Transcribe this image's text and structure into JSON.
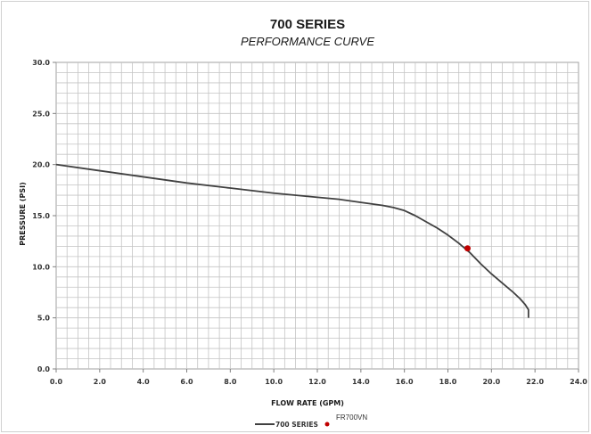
{
  "chart_data": {
    "type": "line",
    "title": "700 SERIES",
    "subtitle": "PERFORMANCE CURVE",
    "xlabel": "FLOW RATE (GPM)",
    "ylabel": "PRESSURE (PSI)",
    "xlim": [
      0,
      24
    ],
    "ylim": [
      0,
      30
    ],
    "x_ticks": [
      "0.0",
      "2.0",
      "4.0",
      "6.0",
      "8.0",
      "10.0",
      "12.0",
      "14.0",
      "16.0",
      "18.0",
      "20.0",
      "22.0",
      "24.0"
    ],
    "y_ticks": [
      "0.0",
      "5.0",
      "10.0",
      "15.0",
      "20.0",
      "25.0",
      "30.0"
    ],
    "grid": true,
    "legend_position": "bottom",
    "series": [
      {
        "name": "700 SERIES",
        "color": "#404040",
        "x": [
          0.0,
          2.0,
          4.0,
          6.0,
          8.0,
          10.0,
          12.0,
          13.0,
          14.0,
          15.0,
          15.5,
          16.0,
          16.5,
          17.0,
          17.5,
          18.0,
          18.5,
          19.0,
          19.5,
          20.0,
          20.5,
          21.0,
          21.3,
          21.55,
          21.7,
          21.7
        ],
        "y": [
          20.0,
          19.4,
          18.8,
          18.2,
          17.7,
          17.2,
          16.8,
          16.6,
          16.3,
          16.0,
          15.8,
          15.5,
          15.0,
          14.4,
          13.8,
          13.1,
          12.3,
          11.4,
          10.3,
          9.3,
          8.4,
          7.5,
          6.9,
          6.3,
          5.8,
          5.0
        ]
      },
      {
        "name": "FR700VN",
        "type": "scatter",
        "color": "#c00000",
        "x": [
          18.9
        ],
        "y": [
          11.8
        ]
      }
    ]
  }
}
